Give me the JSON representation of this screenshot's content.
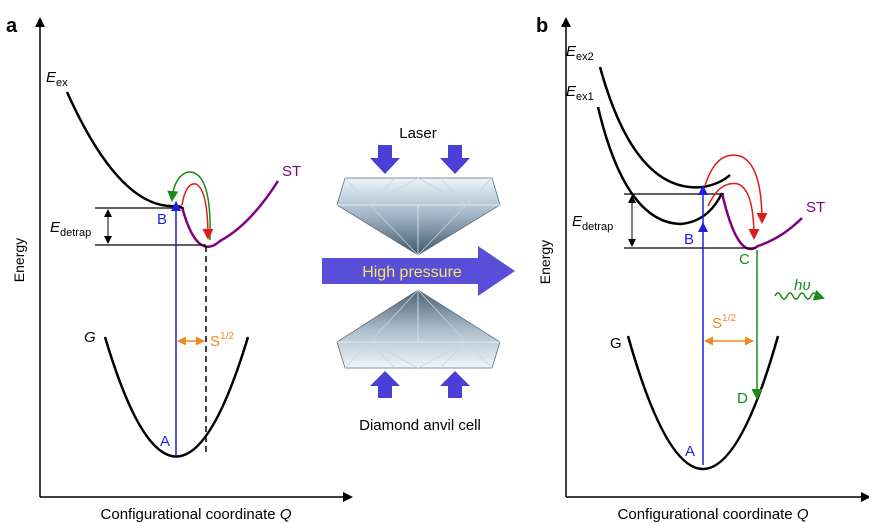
{
  "panel_a": {
    "letter": "a",
    "y_axis_label": "Energy",
    "x_axis_label": "Configurational coordinate",
    "x_axis_symbol": "Q",
    "curve_excited": {
      "base": "E",
      "sub": "ex"
    },
    "curve_ground": "G",
    "curve_st": "ST",
    "barrier": {
      "base": "E",
      "sub": "detrap"
    },
    "point_a": "A",
    "point_b": "B",
    "shift": {
      "base": "S",
      "sup": "1/2"
    }
  },
  "panel_b": {
    "letter": "b",
    "y_axis_label": "Energy",
    "x_axis_label": "Configurational coordinate",
    "x_axis_symbol": "Q",
    "curve_excited_2": {
      "base": "E",
      "sub": "ex2"
    },
    "curve_excited_1": {
      "base": "E",
      "sub": "ex1"
    },
    "curve_ground": "G",
    "curve_st": "ST",
    "barrier": {
      "base": "E",
      "sub": "detrap"
    },
    "point_a": "A",
    "point_b": "B",
    "point_c": "C",
    "point_d": "D",
    "shift": {
      "base": "S",
      "sup": "1/2"
    },
    "emission": "hυ"
  },
  "center": {
    "laser_label": "Laser",
    "pressure_label": "High pressure",
    "cell_label": "Diamond anvil cell"
  },
  "colors": {
    "transition_blue": "#1f1fe0",
    "st_purple": "#800080",
    "arrow_green": "#1a8a1a",
    "arrow_red": "#e01a1a",
    "shift_orange": "#f08a20",
    "pressure_arrow": "#4a3fd6",
    "pressure_text": "#f5e663"
  }
}
